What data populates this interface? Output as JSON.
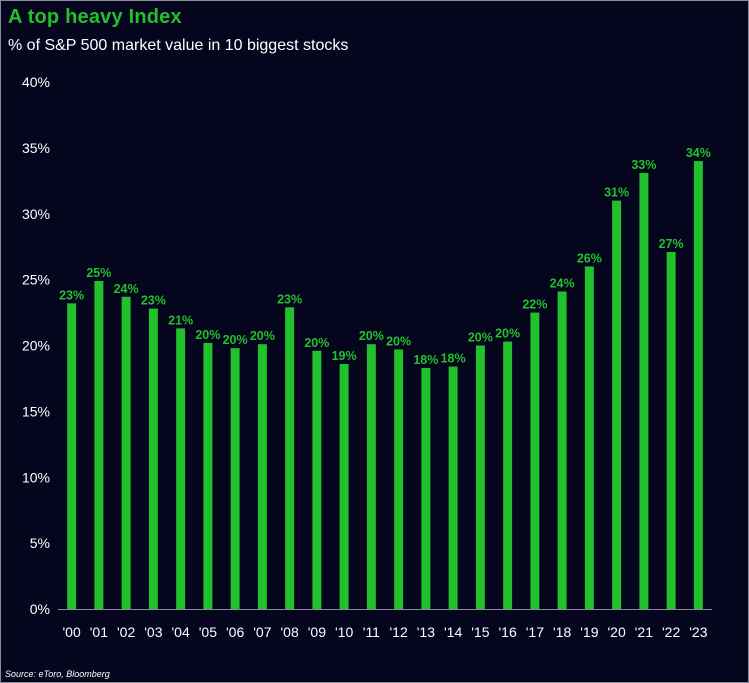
{
  "title": "A top heavy Index",
  "subtitle": "% of S&P 500 market value in 10 biggest stocks",
  "source": "Source: eToro, Bloomberg",
  "colors": {
    "background": "#05051e",
    "bar": "#22c02a",
    "label": "#22c02a",
    "text": "#ffffff",
    "axis": "#8a8a9a"
  },
  "chart_data": {
    "type": "bar",
    "categories": [
      "'00",
      "'01",
      "'02",
      "'03",
      "'04",
      "'05",
      "'06",
      "'07",
      "'08",
      "'09",
      "'10",
      "'11",
      "'12",
      "'13",
      "'14",
      "'15",
      "'16",
      "'17",
      "'18",
      "'19",
      "'20",
      "'21",
      "'22",
      "'23"
    ],
    "values": [
      23.2,
      24.9,
      23.7,
      22.8,
      21.3,
      20.2,
      19.8,
      20.1,
      22.9,
      19.6,
      18.6,
      20.1,
      19.7,
      18.3,
      18.4,
      20.0,
      20.3,
      22.5,
      24.1,
      26.0,
      31.0,
      33.1,
      27.1,
      34.0
    ],
    "data_labels": [
      "23%",
      "25%",
      "24%",
      "23%",
      "21%",
      "20%",
      "20%",
      "20%",
      "23%",
      "20%",
      "19%",
      "20%",
      "20%",
      "18%",
      "18%",
      "20%",
      "20%",
      "22%",
      "24%",
      "26%",
      "31%",
      "33%",
      "27%",
      "34%"
    ],
    "yticks": [
      "0%",
      "5%",
      "10%",
      "15%",
      "20%",
      "25%",
      "30%",
      "35%",
      "40%"
    ],
    "ylim": [
      0,
      40
    ],
    "grid": false,
    "xlabel": "",
    "ylabel": ""
  }
}
